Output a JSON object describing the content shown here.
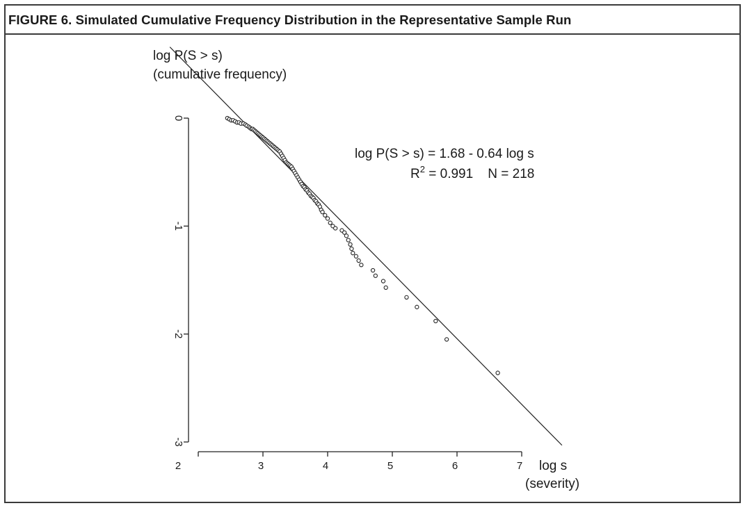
{
  "figure": {
    "title": "FIGURE 6.   Simulated Cumulative Frequency Distribution in the Representative Sample Run"
  },
  "chart_data": {
    "type": "scatter",
    "title": "",
    "ylabel_line1": "log P(S > s)",
    "ylabel_line2": "(cumulative frequency)",
    "xlabel_line1": "log s",
    "xlabel_line2": "(severity)",
    "xlim": [
      2,
      7
    ],
    "ylim": [
      -3,
      0
    ],
    "x_ticks": [
      "2",
      "3",
      "4",
      "5",
      "6",
      "7"
    ],
    "y_ticks": [
      "0",
      "-1",
      "-2",
      "-3"
    ],
    "grid": false,
    "annotation_line1": "log P(S > s) = 1.68 - 0.64 log s",
    "annotation_r2": "R",
    "annotation_r2_sup": "2",
    "annotation_r2_rest": " = 0.991    N = 218",
    "fit_line": {
      "intercept": 1.68,
      "slope": -0.64,
      "x_range": [
        2.4,
        7.3
      ]
    },
    "points": [
      [
        2.45,
        0.0
      ],
      [
        2.48,
        -0.01
      ],
      [
        2.51,
        -0.02
      ],
      [
        2.54,
        -0.02
      ],
      [
        2.57,
        -0.03
      ],
      [
        2.6,
        -0.04
      ],
      [
        2.63,
        -0.04
      ],
      [
        2.66,
        -0.05
      ],
      [
        2.7,
        -0.05
      ],
      [
        2.73,
        -0.06
      ],
      [
        2.75,
        -0.07
      ],
      [
        2.78,
        -0.08
      ],
      [
        2.8,
        -0.09
      ],
      [
        2.82,
        -0.1
      ],
      [
        2.84,
        -0.1
      ],
      [
        2.86,
        -0.11
      ],
      [
        2.88,
        -0.12
      ],
      [
        2.9,
        -0.13
      ],
      [
        2.92,
        -0.14
      ],
      [
        2.94,
        -0.15
      ],
      [
        2.96,
        -0.16
      ],
      [
        2.98,
        -0.17
      ],
      [
        3.0,
        -0.18
      ],
      [
        3.02,
        -0.19
      ],
      [
        3.04,
        -0.2
      ],
      [
        3.06,
        -0.21
      ],
      [
        3.08,
        -0.22
      ],
      [
        3.1,
        -0.23
      ],
      [
        3.12,
        -0.24
      ],
      [
        3.14,
        -0.25
      ],
      [
        3.16,
        -0.26
      ],
      [
        3.18,
        -0.27
      ],
      [
        3.2,
        -0.28
      ],
      [
        3.22,
        -0.29
      ],
      [
        3.24,
        -0.3
      ],
      [
        3.26,
        -0.31
      ],
      [
        3.28,
        -0.33
      ],
      [
        3.3,
        -0.35
      ],
      [
        3.32,
        -0.37
      ],
      [
        3.34,
        -0.39
      ],
      [
        3.36,
        -0.41
      ],
      [
        3.38,
        -0.42
      ],
      [
        3.4,
        -0.43
      ],
      [
        3.42,
        -0.44
      ],
      [
        3.44,
        -0.45
      ],
      [
        3.46,
        -0.47
      ],
      [
        3.48,
        -0.49
      ],
      [
        3.5,
        -0.51
      ],
      [
        3.52,
        -0.53
      ],
      [
        3.54,
        -0.55
      ],
      [
        3.56,
        -0.57
      ],
      [
        3.58,
        -0.59
      ],
      [
        3.6,
        -0.61
      ],
      [
        3.62,
        -0.63
      ],
      [
        3.64,
        -0.64
      ],
      [
        3.66,
        -0.66
      ],
      [
        3.68,
        -0.67
      ],
      [
        3.7,
        -0.69
      ],
      [
        3.72,
        -0.7
      ],
      [
        3.74,
        -0.72
      ],
      [
        3.76,
        -0.73
      ],
      [
        3.78,
        -0.74
      ],
      [
        3.8,
        -0.76
      ],
      [
        3.82,
        -0.77
      ],
      [
        3.84,
        -0.79
      ],
      [
        3.86,
        -0.8
      ],
      [
        3.88,
        -0.82
      ],
      [
        3.9,
        -0.85
      ],
      [
        3.92,
        -0.87
      ],
      [
        3.96,
        -0.9
      ],
      [
        4.0,
        -0.93
      ],
      [
        4.04,
        -0.97
      ],
      [
        4.08,
        -1.0
      ],
      [
        4.12,
        -1.02
      ],
      [
        4.22,
        -1.04
      ],
      [
        4.26,
        -1.06
      ],
      [
        4.29,
        -1.09
      ],
      [
        4.32,
        -1.13
      ],
      [
        4.35,
        -1.17
      ],
      [
        4.37,
        -1.21
      ],
      [
        4.39,
        -1.25
      ],
      [
        4.44,
        -1.28
      ],
      [
        4.48,
        -1.32
      ],
      [
        4.52,
        -1.36
      ],
      [
        4.7,
        -1.41
      ],
      [
        4.74,
        -1.46
      ],
      [
        4.86,
        -1.51
      ],
      [
        4.9,
        -1.57
      ],
      [
        5.22,
        -1.66
      ],
      [
        5.38,
        -1.75
      ],
      [
        5.67,
        -1.88
      ],
      [
        5.84,
        -2.05
      ],
      [
        6.63,
        -2.36
      ]
    ]
  }
}
